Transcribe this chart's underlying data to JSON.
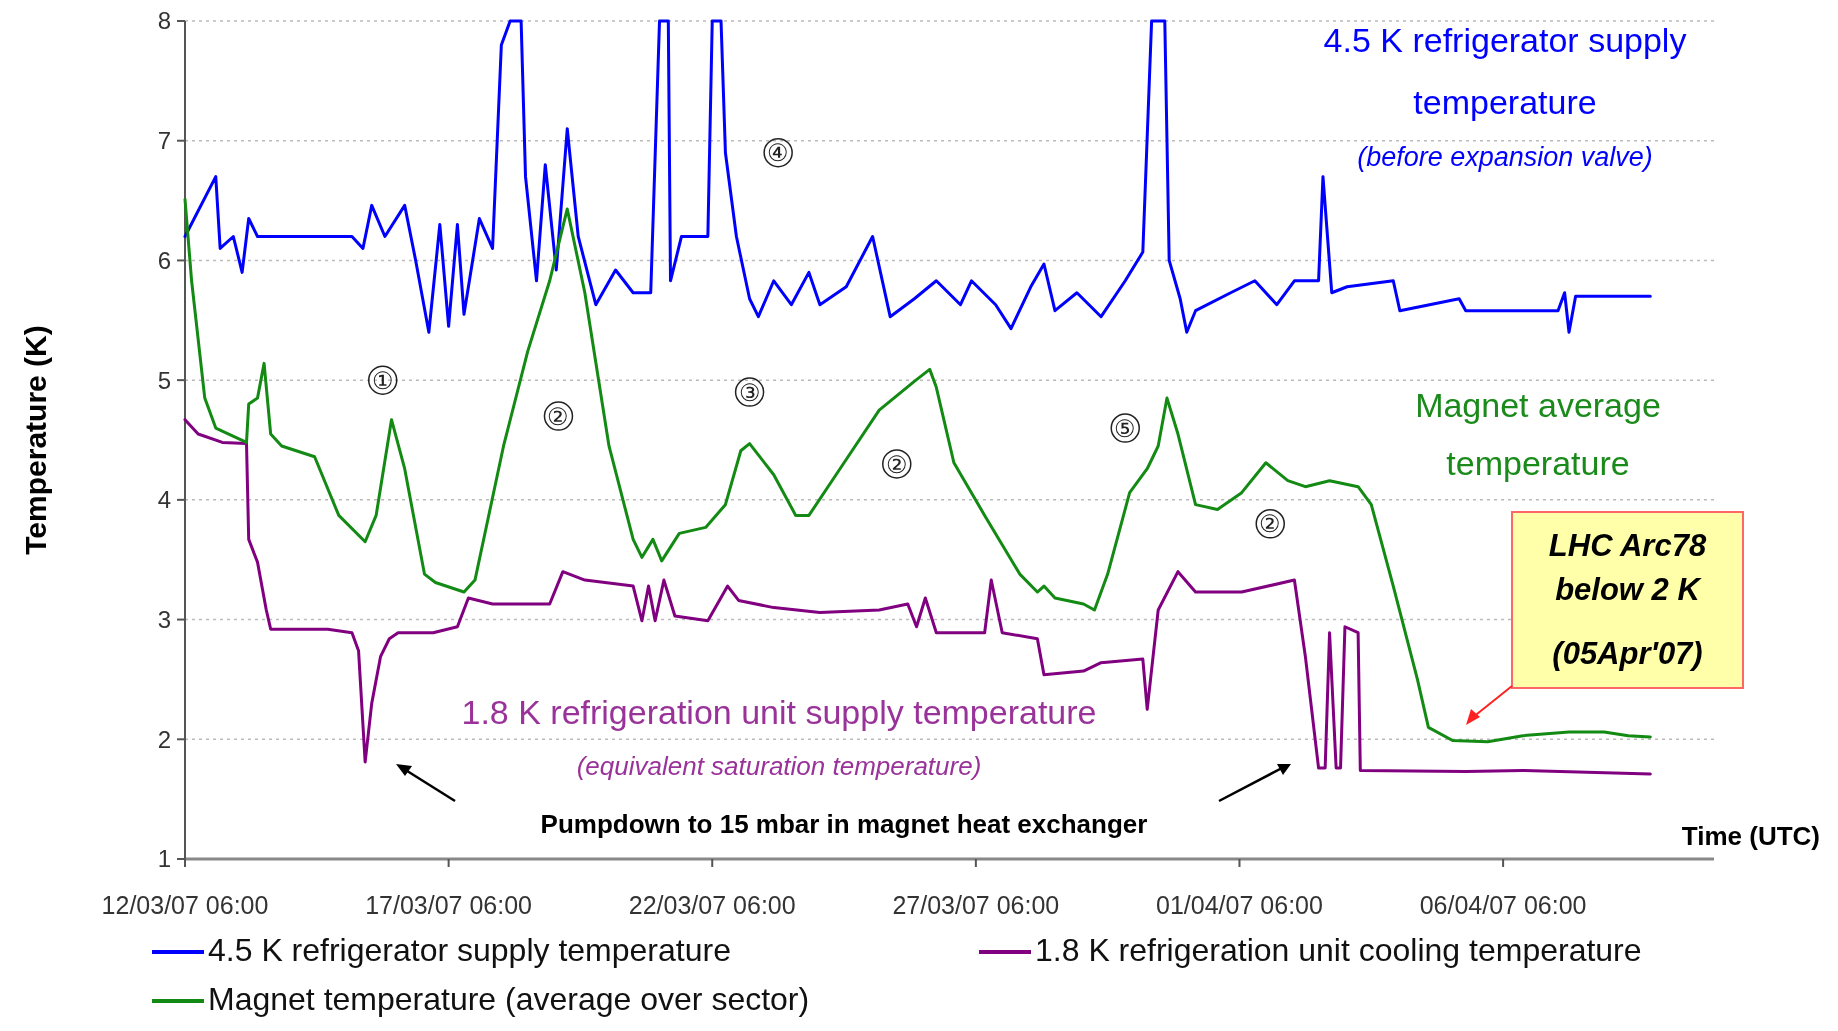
{
  "chart_data": {
    "type": "line",
    "xlabel": "Time (UTC)",
    "ylabel": "Temperature (K)",
    "xlim": [
      "2007-03-12T06:00",
      "2007-04-10T06:00"
    ],
    "xticks": [
      {
        "value": "2007-03-12T06:00",
        "label": "12/03/07 06:00"
      },
      {
        "value": "2007-03-17T06:00",
        "label": "17/03/07 06:00"
      },
      {
        "value": "2007-03-22T06:00",
        "label": "22/03/07 06:00"
      },
      {
        "value": "2007-03-27T06:00",
        "label": "27/03/07 06:00"
      },
      {
        "value": "2007-04-01T06:00",
        "label": "01/04/07 06:00"
      },
      {
        "value": "2007-04-06T06:00",
        "label": "06/04/07 06:00"
      }
    ],
    "ylim": [
      1,
      8
    ],
    "yticks": [
      1,
      2,
      3,
      4,
      5,
      6,
      7,
      8
    ],
    "grid": "y",
    "legend": "bottom",
    "line_style": "solid",
    "marker": "none",
    "series": [
      {
        "name": "4.5 K refrigerator supply temperature",
        "color": "#0000ff",
        "x": [
          "2007-03-12T06:00",
          "2007-03-12T20:00",
          "2007-03-12T22:00",
          "2007-03-13T04:00",
          "2007-03-13T08:00",
          "2007-03-13T11:00",
          "2007-03-13T15:00",
          "2007-03-15T10:00",
          "2007-03-15T15:00",
          "2007-03-15T19:00",
          "2007-03-16T01:00",
          "2007-03-16T10:00",
          "2007-03-16T15:00",
          "2007-03-16T21:00",
          "2007-03-17T02:00",
          "2007-03-17T06:00",
          "2007-03-17T10:00",
          "2007-03-17T13:00",
          "2007-03-17T20:00",
          "2007-03-18T02:00",
          "2007-03-18T06:00",
          "2007-03-18T10:00",
          "2007-03-18T15:00",
          "2007-03-18T17:00",
          "2007-03-18T22:00",
          "2007-03-19T02:00",
          "2007-03-19T07:00",
          "2007-03-19T12:00",
          "2007-03-19T17:00",
          "2007-03-20T01:00",
          "2007-03-20T10:00",
          "2007-03-20T18:00",
          "2007-03-21T02:00",
          "2007-03-21T06:00",
          "2007-03-21T10:00",
          "2007-03-21T11:00",
          "2007-03-21T16:00",
          "2007-03-22T04:00",
          "2007-03-22T06:00",
          "2007-03-22T10:00",
          "2007-03-22T12:00",
          "2007-03-22T17:00",
          "2007-03-22T23:00",
          "2007-03-23T03:00",
          "2007-03-23T10:00",
          "2007-03-23T18:00",
          "2007-03-24T02:00",
          "2007-03-24T07:00",
          "2007-03-24T19:00",
          "2007-03-25T07:00",
          "2007-03-25T15:00",
          "2007-03-26T02:00",
          "2007-03-26T12:00",
          "2007-03-26T23:00",
          "2007-03-27T04:00",
          "2007-03-27T15:00",
          "2007-03-27T22:00",
          "2007-03-28T07:00",
          "2007-03-28T13:00",
          "2007-03-28T18:00",
          "2007-03-29T04:00",
          "2007-03-29T15:00",
          "2007-03-30T02:00",
          "2007-03-30T10:00",
          "2007-03-30T14:00",
          "2007-03-30T20:00",
          "2007-03-30T22:00",
          "2007-03-31T03:00",
          "2007-03-31T06:00",
          "2007-03-31T10:00",
          "2007-04-01T02:00",
          "2007-04-01T13:00",
          "2007-04-01T23:00",
          "2007-04-02T07:00",
          "2007-04-02T18:00",
          "2007-04-02T20:00",
          "2007-04-03T00:00",
          "2007-04-03T07:00",
          "2007-04-04T04:00",
          "2007-04-04T07:00",
          "2007-04-05T10:00",
          "2007-04-05T13:00",
          "2007-04-07T07:00",
          "2007-04-07T10:00",
          "2007-04-07T12:00",
          "2007-04-07T15:00",
          "2007-04-09T01:00"
        ],
        "values": [
          6.2,
          6.7,
          6.1,
          6.2,
          5.9,
          6.35,
          6.2,
          6.2,
          6.1,
          6.46,
          6.2,
          6.46,
          6.0,
          5.4,
          6.3,
          5.45,
          6.3,
          5.55,
          6.35,
          6.1,
          7.8,
          8,
          8,
          6.7,
          5.83,
          6.8,
          5.92,
          7.1,
          6.2,
          5.63,
          5.92,
          5.73,
          5.73,
          8,
          8,
          5.83,
          6.2,
          6.2,
          8,
          8,
          6.9,
          6.2,
          5.68,
          5.53,
          5.83,
          5.63,
          5.9,
          5.63,
          5.78,
          6.2,
          5.53,
          5.68,
          5.83,
          5.63,
          5.83,
          5.63,
          5.43,
          5.78,
          5.97,
          5.58,
          5.73,
          5.53,
          5.83,
          6.07,
          8,
          8,
          6.0,
          5.68,
          5.4,
          5.58,
          5.73,
          5.83,
          5.63,
          5.83,
          5.83,
          6.7,
          5.73,
          5.78,
          5.83,
          5.58,
          5.68,
          5.58,
          5.58,
          5.73,
          5.4,
          5.7,
          5.7
        ]
      },
      {
        "name": "1.8 K refrigeration unit cooling temperature",
        "color": "#800080",
        "x": [
          "2007-03-12T06:00",
          "2007-03-12T12:00",
          "2007-03-12T23:00",
          "2007-03-13T10:00",
          "2007-03-13T11:00",
          "2007-03-13T15:00",
          "2007-03-13T19:00",
          "2007-03-13T21:00",
          "2007-03-14T23:00",
          "2007-03-15T10:00",
          "2007-03-15T13:00",
          "2007-03-15T16:00",
          "2007-03-15T19:00",
          "2007-03-15T23:00",
          "2007-03-16T03:00",
          "2007-03-16T07:00",
          "2007-03-16T23:00",
          "2007-03-17T10:00",
          "2007-03-17T15:00",
          "2007-03-18T02:00",
          "2007-03-19T04:00",
          "2007-03-19T10:00",
          "2007-03-19T20:00",
          "2007-03-20T18:00",
          "2007-03-20T22:00",
          "2007-03-21T01:00",
          "2007-03-21T04:00",
          "2007-03-21T08:00",
          "2007-03-21T13:00",
          "2007-03-22T04:00",
          "2007-03-22T13:00",
          "2007-03-22T18:00",
          "2007-03-23T10:00",
          "2007-03-24T07:00",
          "2007-03-25T10:00",
          "2007-03-25T23:00",
          "2007-03-26T03:00",
          "2007-03-26T07:00",
          "2007-03-26T12:00",
          "2007-03-27T10:00",
          "2007-03-27T13:00",
          "2007-03-27T18:00",
          "2007-03-28T10:00",
          "2007-03-28T13:00",
          "2007-03-29T07:00",
          "2007-03-29T15:00",
          "2007-03-30T10:00",
          "2007-03-30T12:00",
          "2007-03-30T17:00",
          "2007-03-31T02:00",
          "2007-03-31T10:00",
          "2007-04-01T07:00",
          "2007-04-02T07:00",
          "2007-04-02T12:00",
          "2007-04-02T18:00",
          "2007-04-02T21:00",
          "2007-04-02T23:00",
          "2007-04-03T02:00",
          "2007-04-03T04:00",
          "2007-04-03T06:00",
          "2007-04-03T12:00",
          "2007-04-03T13:00",
          "2007-04-05T13:00",
          "2007-04-06T15:00",
          "2007-04-09T01:00"
        ],
        "values": [
          4.67,
          4.55,
          4.48,
          4.47,
          3.67,
          3.48,
          3.08,
          2.92,
          2.92,
          2.89,
          2.74,
          1.81,
          2.3,
          2.69,
          2.84,
          2.89,
          2.89,
          2.94,
          3.18,
          3.13,
          3.13,
          3.4,
          3.33,
          3.28,
          2.99,
          3.28,
          2.99,
          3.33,
          3.03,
          2.99,
          3.28,
          3.16,
          3.1,
          3.06,
          3.08,
          3.13,
          2.94,
          3.18,
          2.89,
          2.89,
          3.33,
          2.89,
          2.84,
          2.54,
          2.57,
          2.64,
          2.67,
          2.25,
          3.08,
          3.4,
          3.23,
          3.23,
          3.33,
          2.69,
          1.76,
          1.76,
          2.89,
          1.76,
          1.76,
          2.94,
          2.89,
          1.74,
          1.73,
          1.74,
          1.71
        ]
      },
      {
        "name": "Magnet temperature (average over sector)",
        "color": "#138a13",
        "x": [
          "2007-03-12T06:00",
          "2007-03-12T09:00",
          "2007-03-12T15:00",
          "2007-03-12T20:00",
          "2007-03-13T10:00",
          "2007-03-13T11:00",
          "2007-03-13T15:00",
          "2007-03-13T18:00",
          "2007-03-13T21:00",
          "2007-03-14T02:00",
          "2007-03-14T17:00",
          "2007-03-15T04:00",
          "2007-03-15T16:00",
          "2007-03-15T21:00",
          "2007-03-16T04:00",
          "2007-03-16T10:00",
          "2007-03-16T19:00",
          "2007-03-17T00:00",
          "2007-03-17T13:00",
          "2007-03-17T18:00",
          "2007-03-18T07:00",
          "2007-03-18T18:00",
          "2007-03-19T04:00",
          "2007-03-19T12:00",
          "2007-03-19T20:00",
          "2007-03-20T07:00",
          "2007-03-20T18:00",
          "2007-03-20T22:00",
          "2007-03-21T03:00",
          "2007-03-21T07:00",
          "2007-03-21T15:00",
          "2007-03-22T03:00",
          "2007-03-22T12:00",
          "2007-03-22T19:00",
          "2007-03-22T23:00",
          "2007-03-23T10:00",
          "2007-03-23T20:00",
          "2007-03-24T02:00",
          "2007-03-24T18:00",
          "2007-03-25T10:00",
          "2007-03-26T02:00",
          "2007-03-26T09:00",
          "2007-03-26T12:00",
          "2007-03-26T20:00",
          "2007-03-27T10:00",
          "2007-03-28T02:00",
          "2007-03-28T10:00",
          "2007-03-28T13:00",
          "2007-03-28T18:00",
          "2007-03-29T07:00",
          "2007-03-29T12:00",
          "2007-03-29T18:00",
          "2007-03-30T04:00",
          "2007-03-30T12:00",
          "2007-03-30T17:00",
          "2007-03-30T21:00",
          "2007-03-31T02:00",
          "2007-03-31T10:00",
          "2007-03-31T20:00",
          "2007-04-01T07:00",
          "2007-04-01T18:00",
          "2007-04-02T04:00",
          "2007-04-02T12:00",
          "2007-04-02T23:00",
          "2007-04-03T12:00",
          "2007-04-03T18:00",
          "2007-04-04T04:00",
          "2007-04-04T15:00",
          "2007-04-04T20:00",
          "2007-04-05T07:00",
          "2007-04-05T23:00",
          "2007-04-06T15:00",
          "2007-04-07T12:00",
          "2007-04-08T04:00",
          "2007-04-08T15:00",
          "2007-04-09T01:00"
        ],
        "values": [
          6.51,
          5.83,
          4.85,
          4.6,
          4.48,
          4.8,
          4.85,
          5.14,
          4.55,
          4.45,
          4.36,
          3.87,
          3.65,
          3.87,
          4.67,
          4.26,
          3.38,
          3.31,
          3.23,
          3.33,
          4.45,
          5.24,
          5.83,
          6.43,
          5.73,
          4.45,
          3.67,
          3.52,
          3.67,
          3.49,
          3.72,
          3.77,
          3.96,
          4.41,
          4.47,
          4.21,
          3.87,
          3.87,
          4.31,
          4.75,
          4.99,
          5.09,
          4.94,
          4.31,
          3.87,
          3.38,
          3.23,
          3.28,
          3.18,
          3.13,
          3.08,
          3.38,
          4.06,
          4.26,
          4.45,
          4.85,
          4.55,
          3.96,
          3.92,
          4.06,
          4.31,
          4.16,
          4.11,
          4.16,
          4.11,
          3.96,
          3.28,
          2.5,
          2.1,
          1.99,
          1.98,
          2.03,
          2.06,
          2.06,
          2.03,
          2.02
        ]
      }
    ],
    "annotations": [
      "4.5 K refrigerator supply temperature",
      "(before expansion valve)",
      "Magnet average temperature",
      "1.8 K refrigeration unit supply temperature",
      "(equivalent saturation temperature)",
      "Pumpdown to 15 mbar in magnet heat exchanger",
      "LHC Arc78 below 2 K (05Apr'07)",
      {
        "text": "①",
        "x": "2007-03-16T00:00",
        "y": 5.0
      },
      {
        "text": "②",
        "x": "2007-03-19T08:00",
        "y": 4.7
      },
      {
        "text": "③",
        "x": "2007-03-22T23:00",
        "y": 4.9
      },
      {
        "text": "④",
        "x": "2007-03-23T12:00",
        "y": 6.9
      },
      {
        "text": "②",
        "x": "2007-03-25T18:00",
        "y": 4.3
      },
      {
        "text": "⑤",
        "x": "2007-03-30T02:00",
        "y": 4.6
      },
      {
        "text": "②",
        "x": "2007-04-01T20:00",
        "y": 3.8
      }
    ]
  }
}
